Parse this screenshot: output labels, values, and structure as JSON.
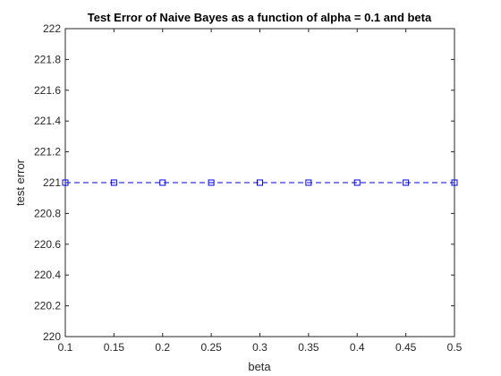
{
  "chart_data": {
    "type": "line",
    "title": "Test Error of Naive Bayes as a function of alpha = 0.1 and beta",
    "xlabel": "beta",
    "ylabel": "test error",
    "xlim": [
      0.1,
      0.5
    ],
    "ylim": [
      220,
      222
    ],
    "xticks": [
      "0.1",
      "0.15",
      "0.2",
      "0.25",
      "0.3",
      "0.35",
      "0.4",
      "0.45",
      "0.5"
    ],
    "yticks": [
      "220",
      "220.2",
      "220.4",
      "220.6",
      "220.8",
      "221",
      "221.2",
      "221.4",
      "221.6",
      "221.8",
      "222"
    ],
    "grid": false,
    "series": [
      {
        "line_style": "dashed",
        "marker": "square",
        "color": "#0000ff",
        "x": [
          0.1,
          0.15,
          0.2,
          0.25,
          0.3,
          0.35,
          0.4,
          0.45,
          0.5
        ],
        "y": [
          221,
          221,
          221,
          221,
          221,
          221,
          221,
          221,
          221
        ]
      }
    ]
  }
}
